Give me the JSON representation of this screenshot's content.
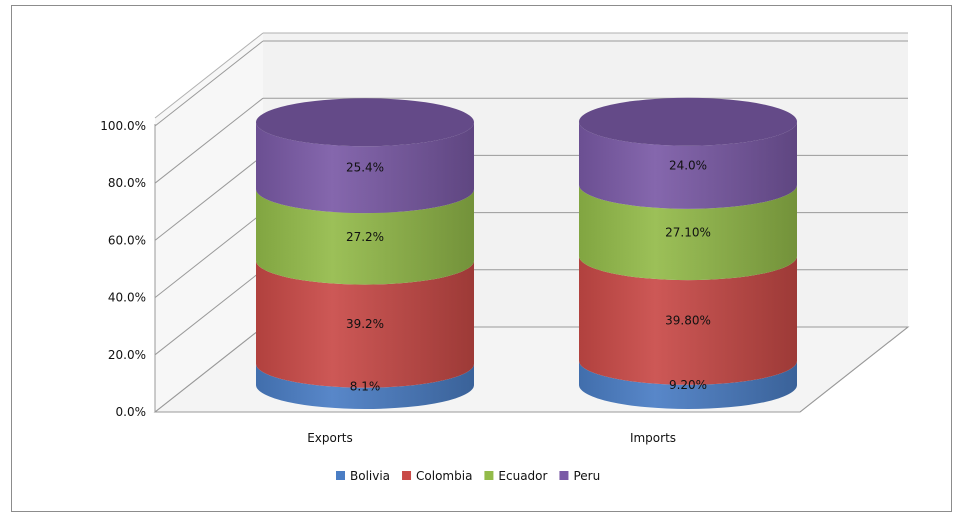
{
  "chart_data": {
    "type": "bar",
    "subtype": "stacked-100-percent-3d-cylinder",
    "categories": [
      "Exports",
      "Imports"
    ],
    "series": [
      {
        "name": "Bolivia",
        "color": "#4a7dc4",
        "values": [
          8.1,
          9.2
        ],
        "labels": [
          "8.1%",
          "9.20%"
        ]
      },
      {
        "name": "Colombia",
        "color": "#c94a47",
        "values": [
          39.2,
          39.8
        ],
        "labels": [
          "39.2%",
          "39.80%"
        ]
      },
      {
        "name": "Ecuador",
        "color": "#93bb4a",
        "values": [
          27.2,
          27.1
        ],
        "labels": [
          "27.2%",
          "27.10%"
        ]
      },
      {
        "name": "Peru",
        "color": "#7a5aa6",
        "values": [
          25.4,
          24.0
        ],
        "labels": [
          "25.4%",
          "24.0%"
        ]
      }
    ],
    "y_ticks": [
      "0.0%",
      "20.0%",
      "40.0%",
      "60.0%",
      "80.0%",
      "100.0%"
    ],
    "ylim": [
      0,
      100
    ],
    "grid": true,
    "legend_position": "bottom",
    "title": "",
    "xlabel": "",
    "ylabel": ""
  }
}
